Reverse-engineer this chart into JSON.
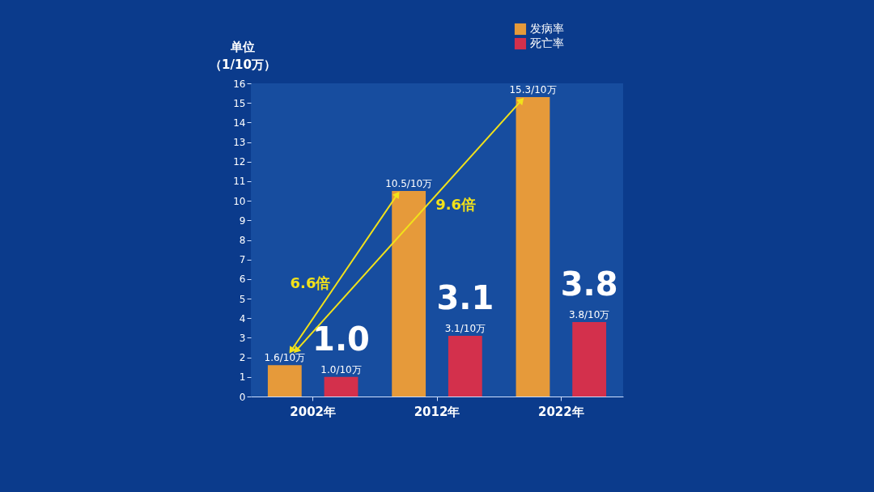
{
  "chart_data": {
    "type": "bar",
    "ylabel": "单位（1/10万）",
    "categories": [
      "2002年",
      "2012年",
      "2022年"
    ],
    "series": [
      {
        "name": "发病率",
        "color": "#e69a3a",
        "values": [
          1.6,
          10.5,
          15.3
        ],
        "value_labels": [
          "1.6/10万",
          "10.5/10万",
          "15.3/10万"
        ]
      },
      {
        "name": "死亡率",
        "color": "#d3304c",
        "values": [
          1.0,
          3.1,
          3.8
        ],
        "value_labels": [
          "1.0/10万",
          "3.1/10万",
          "3.8/10万"
        ]
      }
    ],
    "ylim": [
      0,
      16
    ],
    "yticks": [
      0,
      1,
      2,
      3,
      4,
      5,
      6,
      7,
      8,
      9,
      10,
      11,
      12,
      13,
      14,
      15,
      16
    ],
    "grid": false,
    "legend": "top right",
    "annotations": [
      "1.0",
      "3.1",
      "3.8",
      "6.6倍",
      "9.6倍"
    ]
  }
}
